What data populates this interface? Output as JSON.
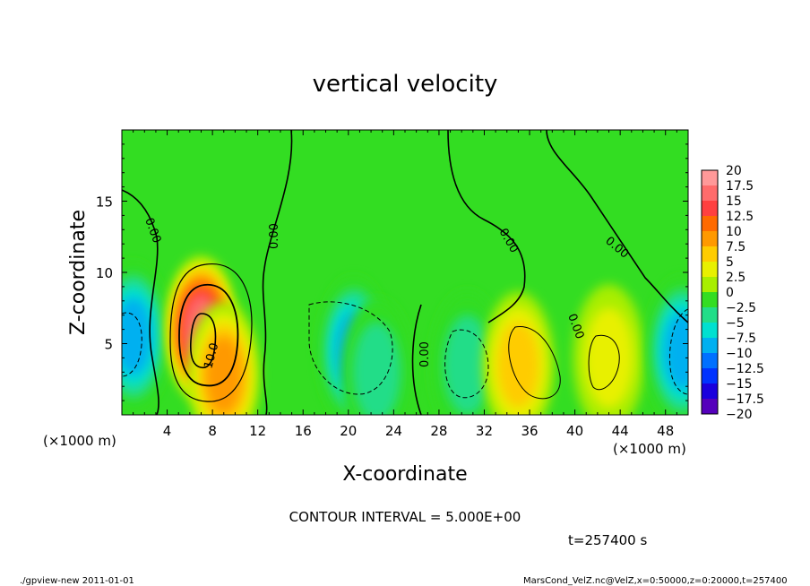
{
  "chart_data": {
    "type": "heatmap",
    "title": "vertical velocity",
    "xlabel": "X-coordinate",
    "ylabel": "Z-coordinate",
    "x_unit": "(×1000 m)",
    "y_unit": "(×1000 m)",
    "xlim": [
      0,
      50
    ],
    "ylim": [
      0,
      20
    ],
    "x_ticks": [
      4,
      8,
      12,
      16,
      20,
      24,
      28,
      32,
      36,
      40,
      44,
      48
    ],
    "y_ticks": [
      5,
      10,
      15
    ],
    "contour_interval_text": "CONTOUR INTERVAL = 5.000E+00",
    "time_text": "t=257400 s",
    "contour_labels": [
      "0.00",
      "0.00",
      "10.0",
      "0.00",
      "0.00",
      "0.00",
      "0.00"
    ],
    "colorbar": {
      "levels": [
        20,
        17.5,
        15,
        12.5,
        10,
        7.5,
        5,
        2.5,
        0,
        -2.5,
        -5,
        -7.5,
        -10,
        -12.5,
        -15,
        -17.5,
        -20
      ],
      "colors": [
        "#ff9999",
        "#ff6b6b",
        "#ff4040",
        "#ff6a00",
        "#ff9900",
        "#ffcc00",
        "#e8f000",
        "#a8ee00",
        "#33dd22",
        "#22dd88",
        "#00e0d0",
        "#00b0f0",
        "#0070ff",
        "#0033ff",
        "#1a00dd",
        "#5500bb"
      ]
    },
    "field_cells": [
      {
        "x": 1.0,
        "z": 5.5,
        "w": -9
      },
      {
        "x": 7.0,
        "z": 6.0,
        "w": 17
      },
      {
        "x": 9.0,
        "z": 2.8,
        "w": 9
      },
      {
        "x": 20.5,
        "z": 4.5,
        "w": -9
      },
      {
        "x": 22.5,
        "z": 3.0,
        "w": -6
      },
      {
        "x": 30.5,
        "z": 3.5,
        "w": -5
      },
      {
        "x": 35.0,
        "z": 3.5,
        "w": 8
      },
      {
        "x": 43.0,
        "z": 4.0,
        "w": 6
      },
      {
        "x": 49.5,
        "z": 4.5,
        "w": -9
      }
    ]
  },
  "footer": {
    "left": "./gpview-new  2011-01-01",
    "right": "MarsCond_VelZ.nc@VelZ,x=0:50000,z=0:20000,t=257400"
  }
}
